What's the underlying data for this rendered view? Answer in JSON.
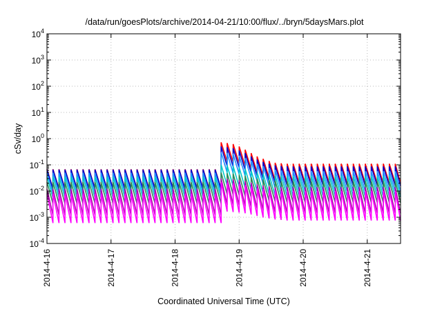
{
  "chart_data": {
    "type": "line",
    "title": "/data/run/goesPlots/archive/2014-04-21/10:00/flux/../bryn/5daysMars.plot",
    "xlabel": "Coordinated Universal Time (UTC)",
    "ylabel": "cSv/day",
    "yscale": "log",
    "ylim": [
      0.0001,
      10000
    ],
    "xlim": [
      0,
      5.52
    ],
    "x_unit": "days since 2014-4-16 00:00 UTC",
    "y_ticks": [
      {
        "value": 0.0001,
        "base": "10",
        "exp": "-4"
      },
      {
        "value": 0.001,
        "base": "10",
        "exp": "-3"
      },
      {
        "value": 0.01,
        "base": "10",
        "exp": "-2"
      },
      {
        "value": 0.1,
        "base": "10",
        "exp": "-1"
      },
      {
        "value": 1,
        "base": "10",
        "exp": "0"
      },
      {
        "value": 10,
        "base": "10",
        "exp": "1"
      },
      {
        "value": 100,
        "base": "10",
        "exp": "2"
      },
      {
        "value": 1000,
        "base": "10",
        "exp": "3"
      },
      {
        "value": 10000,
        "base": "10",
        "exp": "4"
      }
    ],
    "x_ticks": [
      {
        "value": 0,
        "label": "2014-4-16"
      },
      {
        "value": 1,
        "label": "2014-4-17"
      },
      {
        "value": 2,
        "label": "2014-4-18"
      },
      {
        "value": 3,
        "label": "2014-4-19"
      },
      {
        "value": 4,
        "label": "2014-4-20"
      },
      {
        "value": 5,
        "label": "2014-4-21"
      }
    ],
    "grid": true,
    "legend": "none",
    "cycle_days": 0.09375,
    "step_day": 2.65,
    "series": [
      {
        "color": "#ff0000",
        "pre_peak": 0.068,
        "post_peak": [
          0.72,
          0.68,
          0.62,
          0.5,
          0.38,
          0.28,
          0.21,
          0.17,
          0.14,
          0.12,
          0.115,
          0.11,
          0.11,
          0.11,
          0.11,
          0.11,
          0.11,
          0.11,
          0.11,
          0.11,
          0.11,
          0.11,
          0.11,
          0.11,
          0.11,
          0.11,
          0.11,
          0.11,
          0.11,
          0.11
        ],
        "drop": 0.18
      },
      {
        "color": "#0000c8",
        "pre_peak": 0.066,
        "post_peak": [
          0.5,
          0.47,
          0.43,
          0.35,
          0.28,
          0.21,
          0.16,
          0.13,
          0.11,
          0.095,
          0.09,
          0.088,
          0.087,
          0.087,
          0.087,
          0.087,
          0.087,
          0.087,
          0.087,
          0.087,
          0.087,
          0.087,
          0.087,
          0.087,
          0.087,
          0.087,
          0.087,
          0.087,
          0.087,
          0.087
        ],
        "drop": 0.18
      },
      {
        "color": "#1e90ff",
        "pre_peak": 0.05,
        "post_peak": [
          0.3,
          0.28,
          0.26,
          0.22,
          0.18,
          0.14,
          0.11,
          0.09,
          0.075,
          0.065,
          0.06,
          0.058,
          0.057,
          0.057,
          0.057,
          0.057,
          0.057,
          0.057,
          0.057,
          0.057,
          0.057,
          0.057,
          0.057,
          0.057,
          0.057,
          0.057,
          0.057,
          0.057,
          0.057,
          0.057
        ],
        "drop": 0.17
      },
      {
        "color": "#00c8c8",
        "pre_peak": 0.035,
        "post_peak": [
          0.1,
          0.095,
          0.09,
          0.08,
          0.07,
          0.06,
          0.052,
          0.046,
          0.042,
          0.04,
          0.039,
          0.038,
          0.038,
          0.038,
          0.038,
          0.038,
          0.038,
          0.038,
          0.038,
          0.038,
          0.038,
          0.038,
          0.038,
          0.038,
          0.038,
          0.038,
          0.038,
          0.038,
          0.038,
          0.038
        ],
        "drop": 0.16
      },
      {
        "color": "#2e8b57",
        "pre_peak": 0.022,
        "post_peak": [
          0.05,
          0.048,
          0.046,
          0.042,
          0.038,
          0.034,
          0.03,
          0.028,
          0.026,
          0.025,
          0.024,
          0.024,
          0.024,
          0.024,
          0.024,
          0.024,
          0.024,
          0.024,
          0.024,
          0.024,
          0.024,
          0.024,
          0.024,
          0.024,
          0.024,
          0.024,
          0.024,
          0.024,
          0.024,
          0.024
        ],
        "drop": 0.15
      },
      {
        "color": "#b000b0",
        "pre_peak": 0.012,
        "post_peak": [
          0.03,
          0.029,
          0.028,
          0.026,
          0.024,
          0.021,
          0.018,
          0.016,
          0.015,
          0.014,
          0.014,
          0.014,
          0.014,
          0.014,
          0.014,
          0.014,
          0.014,
          0.014,
          0.014,
          0.014,
          0.014,
          0.014,
          0.014,
          0.014,
          0.014,
          0.014,
          0.014,
          0.014,
          0.014,
          0.014
        ],
        "drop": 0.1
      },
      {
        "color": "#ff00ff",
        "pre_peak": 0.008,
        "post_peak": [
          0.022,
          0.021,
          0.02,
          0.019,
          0.017,
          0.015,
          0.013,
          0.012,
          0.011,
          0.0105,
          0.01,
          0.01,
          0.01,
          0.01,
          0.01,
          0.01,
          0.01,
          0.01,
          0.01,
          0.01,
          0.01,
          0.01,
          0.01,
          0.01,
          0.01,
          0.01,
          0.01,
          0.01,
          0.01,
          0.01
        ],
        "drop": 0.075
      }
    ]
  }
}
